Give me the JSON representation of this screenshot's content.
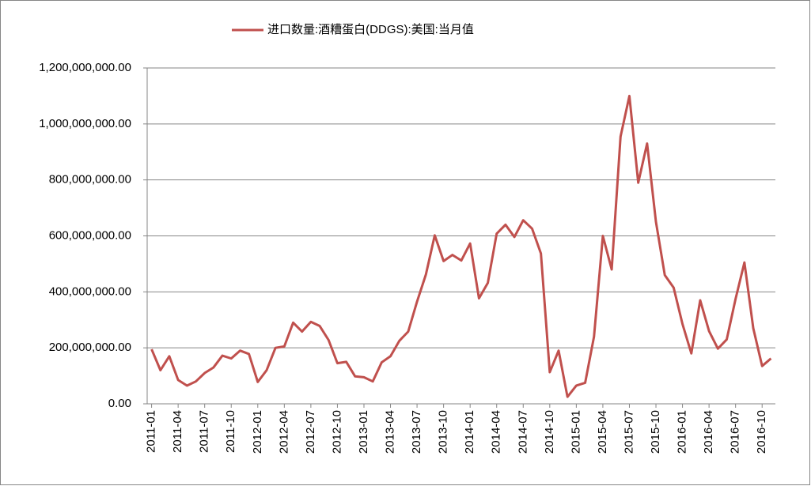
{
  "chart_data": {
    "type": "line",
    "legend": "top",
    "categories": [
      "2011-01",
      null,
      null,
      "2011-04",
      null,
      null,
      "2011-07",
      null,
      null,
      "2011-10",
      null,
      null,
      "2012-01",
      null,
      null,
      "2012-04",
      null,
      null,
      "2012-07",
      null,
      null,
      "2012-10",
      null,
      null,
      "2013-01",
      null,
      null,
      "2013-04",
      null,
      null,
      "2013-07",
      null,
      null,
      "2013-10",
      null,
      null,
      "2014-01",
      null,
      null,
      "2014-04",
      null,
      null,
      "2014-07",
      null,
      null,
      "2014-10",
      null,
      null,
      "2015-01",
      null,
      null,
      "2015-04",
      null,
      null,
      "2015-07",
      null,
      null,
      "2015-10",
      null,
      null,
      "2016-01",
      null,
      null,
      "2016-04",
      null,
      null,
      "2016-07",
      null,
      null,
      "2016-10",
      null
    ],
    "series": [
      {
        "name": "进口数量:酒糟蛋白(DDGS):美国:当月值",
        "color": "#c0504d",
        "values": [
          195000000,
          120000000,
          170000000,
          85000000,
          65000000,
          80000000,
          110000000,
          130000000,
          172000000,
          162000000,
          190000000,
          178000000,
          78000000,
          120000000,
          200000000,
          205000000,
          290000000,
          258000000,
          293000000,
          278000000,
          228000000,
          145000000,
          150000000,
          98000000,
          95000000,
          80000000,
          148000000,
          170000000,
          225000000,
          258000000,
          365000000,
          462000000,
          602000000,
          510000000,
          532000000,
          512000000,
          573000000,
          377000000,
          432000000,
          608000000,
          640000000,
          596000000,
          656000000,
          626000000,
          537000000,
          113000000,
          190000000,
          25000000,
          65000000,
          75000000,
          240000000,
          600000000,
          480000000,
          955000000,
          1100000000,
          790000000,
          930000000,
          650000000,
          460000000,
          415000000,
          285000000,
          180000000,
          370000000,
          260000000,
          197000000,
          230000000,
          375000000,
          505000000,
          270000000,
          135000000,
          162000000
        ]
      }
    ],
    "ylim": [
      0,
      1200000000
    ],
    "yticks": [
      {
        "value": 0,
        "label": "0.00"
      },
      {
        "value": 200000000,
        "label": "200,000,000.00"
      },
      {
        "value": 400000000,
        "label": "400,000,000.00"
      },
      {
        "value": 600000000,
        "label": "600,000,000.00"
      },
      {
        "value": 800000000,
        "label": "800,000,000.00"
      },
      {
        "value": 1000000000,
        "label": "1,000,000,000.00"
      },
      {
        "value": 1200000000,
        "label": "1,200,000,000.00"
      }
    ],
    "grid": true
  }
}
